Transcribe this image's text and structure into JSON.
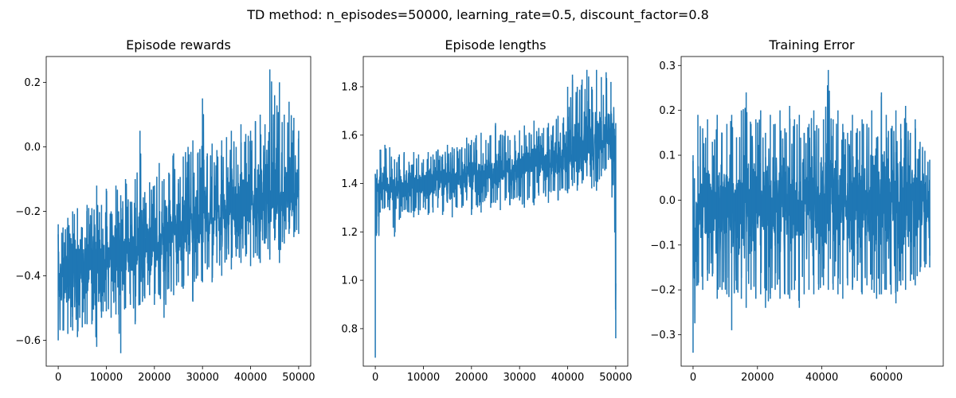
{
  "figure": {
    "suptitle": "TD method: n_episodes=50000, learning_rate=0.5, discount_factor=0.8"
  },
  "chart_data": [
    {
      "type": "line",
      "title": "Episode rewards",
      "xlabel": "",
      "ylabel": "",
      "xlim": [
        -2500,
        52500
      ],
      "ylim": [
        -0.68,
        0.28
      ],
      "xticks": [
        0,
        10000,
        20000,
        30000,
        40000,
        50000
      ],
      "xtick_labels": [
        "0",
        "10000",
        "20000",
        "30000",
        "40000",
        "50000"
      ],
      "yticks": [
        -0.6,
        -0.4,
        -0.2,
        0.0,
        0.2
      ],
      "ytick_labels": [
        "−0.6",
        "−0.4",
        "−0.2",
        "0.0",
        "0.2"
      ],
      "grid": false,
      "color": "#1f77b4",
      "series": [
        {
          "x": [
            0,
            1000,
            2000,
            3000,
            4000,
            5000,
            6000,
            7000,
            8000,
            9000,
            10000,
            11000,
            12000,
            13000,
            14000,
            15000,
            16000,
            17000,
            18000,
            19000,
            20000,
            21000,
            22000,
            23000,
            24000,
            25000,
            26000,
            27000,
            28000,
            29000,
            30000,
            31000,
            32000,
            33000,
            34000,
            35000,
            36000,
            37000,
            38000,
            39000,
            40000,
            41000,
            42000,
            43000,
            44000,
            45000,
            46000,
            47000,
            48000,
            49000,
            50000
          ],
          "values": [
            -0.42,
            -0.4,
            -0.38,
            -0.39,
            -0.37,
            -0.37,
            -0.36,
            -0.36,
            -0.34,
            -0.36,
            -0.35,
            -0.33,
            -0.33,
            -0.32,
            -0.33,
            -0.31,
            -0.32,
            -0.3,
            -0.31,
            -0.29,
            -0.3,
            -0.29,
            -0.28,
            -0.28,
            -0.26,
            -0.27,
            -0.25,
            -0.26,
            -0.24,
            -0.24,
            -0.23,
            -0.23,
            -0.22,
            -0.22,
            -0.21,
            -0.2,
            -0.2,
            -0.19,
            -0.2,
            -0.18,
            -0.18,
            -0.17,
            -0.17,
            -0.16,
            -0.15,
            -0.16,
            -0.14,
            -0.15,
            -0.13,
            -0.14,
            -0.15
          ],
          "band_low": [
            -0.6,
            -0.57,
            -0.58,
            -0.57,
            -0.59,
            -0.56,
            -0.55,
            -0.55,
            -0.62,
            -0.53,
            -0.51,
            -0.53,
            -0.52,
            -0.64,
            -0.5,
            -0.49,
            -0.55,
            -0.49,
            -0.47,
            -0.46,
            -0.49,
            -0.46,
            -0.53,
            -0.44,
            -0.46,
            -0.42,
            -0.44,
            -0.4,
            -0.48,
            -0.4,
            -0.42,
            -0.38,
            -0.42,
            -0.36,
            -0.4,
            -0.35,
            -0.38,
            -0.34,
            -0.36,
            -0.34,
            -0.37,
            -0.33,
            -0.36,
            -0.3,
            -0.35,
            -0.29,
            -0.36,
            -0.3,
            -0.27,
            -0.28,
            -0.27
          ],
          "band_high": [
            -0.24,
            -0.25,
            -0.22,
            -0.2,
            -0.19,
            -0.25,
            -0.18,
            -0.19,
            -0.12,
            -0.18,
            -0.13,
            -0.2,
            -0.12,
            -0.15,
            -0.1,
            -0.17,
            -0.1,
            0.05,
            -0.14,
            -0.11,
            -0.12,
            -0.05,
            -0.1,
            -0.08,
            -0.02,
            -0.1,
            -0.03,
            0.0,
            0.02,
            -0.02,
            0.15,
            -0.02,
            0.01,
            -0.01,
            0.02,
            0.03,
            0.05,
            0.0,
            0.07,
            0.04,
            0.05,
            0.08,
            0.1,
            0.07,
            0.24,
            0.16,
            0.2,
            0.1,
            0.14,
            0.09,
            0.05
          ]
        }
      ]
    },
    {
      "type": "line",
      "title": "Episode lengths",
      "xlabel": "",
      "ylabel": "",
      "xlim": [
        -2500,
        52500
      ],
      "ylim": [
        0.645,
        1.925
      ],
      "xticks": [
        0,
        10000,
        20000,
        30000,
        40000,
        50000
      ],
      "xtick_labels": [
        "0",
        "10000",
        "20000",
        "30000",
        "40000",
        "50000"
      ],
      "yticks": [
        0.8,
        1.0,
        1.2,
        1.4,
        1.6,
        1.8
      ],
      "ytick_labels": [
        "0.8",
        "1.0",
        "1.2",
        "1.4",
        "1.6",
        "1.8"
      ],
      "grid": false,
      "color": "#1f77b4",
      "series": [
        {
          "x": [
            0,
            1000,
            2000,
            3000,
            4000,
            5000,
            6000,
            7000,
            8000,
            9000,
            10000,
            11000,
            12000,
            13000,
            14000,
            15000,
            16000,
            17000,
            18000,
            19000,
            20000,
            21000,
            22000,
            23000,
            24000,
            25000,
            26000,
            27000,
            28000,
            29000,
            30000,
            31000,
            32000,
            33000,
            34000,
            35000,
            36000,
            37000,
            38000,
            39000,
            40000,
            41000,
            42000,
            43000,
            44000,
            45000,
            46000,
            47000,
            48000,
            49000,
            50000
          ],
          "values": [
            1.37,
            1.38,
            1.39,
            1.37,
            1.38,
            1.39,
            1.39,
            1.4,
            1.4,
            1.4,
            1.4,
            1.41,
            1.4,
            1.41,
            1.41,
            1.42,
            1.41,
            1.42,
            1.42,
            1.43,
            1.43,
            1.43,
            1.44,
            1.44,
            1.44,
            1.45,
            1.45,
            1.46,
            1.46,
            1.46,
            1.46,
            1.47,
            1.47,
            1.48,
            1.48,
            1.48,
            1.49,
            1.5,
            1.5,
            1.5,
            1.51,
            1.52,
            1.53,
            1.54,
            1.55,
            1.56,
            1.57,
            1.58,
            1.59,
            1.6,
            1.6
          ],
          "band_low": [
            0.68,
            1.28,
            1.3,
            1.29,
            1.18,
            1.25,
            1.29,
            1.28,
            1.26,
            1.27,
            1.3,
            1.27,
            1.28,
            1.3,
            1.27,
            1.32,
            1.26,
            1.3,
            1.3,
            1.33,
            1.27,
            1.31,
            1.28,
            1.34,
            1.3,
            1.32,
            1.29,
            1.33,
            1.31,
            1.34,
            1.33,
            1.3,
            1.34,
            1.31,
            1.35,
            1.36,
            1.32,
            1.37,
            1.33,
            1.38,
            1.36,
            1.39,
            1.37,
            1.4,
            1.43,
            1.38,
            1.37,
            1.43,
            1.46,
            1.5,
            0.76
          ],
          "band_high": [
            1.44,
            1.54,
            1.56,
            1.55,
            1.5,
            1.52,
            1.53,
            1.49,
            1.53,
            1.52,
            1.5,
            1.53,
            1.52,
            1.54,
            1.52,
            1.56,
            1.55,
            1.55,
            1.55,
            1.59,
            1.58,
            1.6,
            1.61,
            1.58,
            1.6,
            1.65,
            1.6,
            1.62,
            1.58,
            1.6,
            1.62,
            1.64,
            1.61,
            1.66,
            1.63,
            1.63,
            1.65,
            1.64,
            1.68,
            1.65,
            1.8,
            1.85,
            1.8,
            1.83,
            1.87,
            1.8,
            1.87,
            1.84,
            1.86,
            1.82,
            1.65
          ]
        }
      ]
    },
    {
      "type": "line",
      "title": "Training Error",
      "xlabel": "",
      "ylabel": "",
      "xlim": [
        -3700,
        77700
      ],
      "ylim": [
        -0.37,
        0.32
      ],
      "xticks": [
        0,
        20000,
        40000,
        60000
      ],
      "xtick_labels": [
        "0",
        "20000",
        "40000",
        "60000"
      ],
      "yticks": [
        -0.3,
        -0.2,
        -0.1,
        0.0,
        0.1,
        0.2,
        0.3
      ],
      "ytick_labels": [
        "−0.3",
        "−0.2",
        "−0.1",
        "0.0",
        "0.1",
        "0.2",
        "0.3"
      ],
      "grid": false,
      "color": "#1f77b4",
      "series": [
        {
          "x": [
            0,
            1500,
            3000,
            4500,
            6000,
            7500,
            9000,
            10500,
            12000,
            13500,
            15000,
            16500,
            18000,
            19500,
            21000,
            22500,
            24000,
            25500,
            27000,
            28500,
            30000,
            31500,
            33000,
            34500,
            36000,
            37500,
            39000,
            40500,
            42000,
            43500,
            45000,
            46500,
            48000,
            49500,
            51000,
            52500,
            54000,
            55500,
            57000,
            58500,
            60000,
            61500,
            63000,
            64500,
            66000,
            67500,
            69000,
            70500,
            72000,
            73500
          ],
          "values": [
            -0.12,
            -0.03,
            -0.02,
            -0.01,
            0.0,
            -0.02,
            -0.01,
            0.0,
            -0.01,
            0.0,
            -0.01,
            0.0,
            -0.01,
            0.0,
            0.0,
            -0.01,
            -0.01,
            0.0,
            -0.01,
            0.0,
            -0.01,
            0.0,
            -0.01,
            0.0,
            0.0,
            -0.01,
            0.0,
            0.0,
            0.01,
            0.0,
            -0.01,
            0.0,
            0.0,
            -0.01,
            0.0,
            -0.01,
            0.0,
            0.0,
            -0.01,
            0.0,
            -0.01,
            0.0,
            0.0,
            -0.01,
            0.0,
            -0.01,
            0.0,
            0.0,
            -0.01,
            -0.02
          ],
          "band_low": [
            -0.34,
            -0.19,
            -0.2,
            -0.18,
            -0.17,
            -0.22,
            -0.2,
            -0.21,
            -0.29,
            -0.2,
            -0.22,
            -0.24,
            -0.2,
            -0.22,
            -0.21,
            -0.24,
            -0.22,
            -0.2,
            -0.22,
            -0.21,
            -0.22,
            -0.2,
            -0.24,
            -0.21,
            -0.2,
            -0.21,
            -0.2,
            -0.19,
            -0.2,
            -0.2,
            -0.21,
            -0.22,
            -0.19,
            -0.2,
            -0.18,
            -0.21,
            -0.19,
            -0.2,
            -0.22,
            -0.21,
            -0.2,
            -0.21,
            -0.23,
            -0.19,
            -0.2,
            -0.18,
            -0.19,
            -0.16,
            -0.15,
            -0.15
          ],
          "band_high": [
            0.1,
            0.19,
            0.16,
            0.18,
            0.13,
            0.19,
            0.15,
            0.17,
            0.19,
            0.14,
            0.2,
            0.24,
            0.17,
            0.18,
            0.2,
            0.15,
            0.19,
            0.17,
            0.2,
            0.16,
            0.21,
            0.18,
            0.19,
            0.15,
            0.17,
            0.2,
            0.16,
            0.18,
            0.29,
            0.18,
            0.2,
            0.17,
            0.15,
            0.19,
            0.16,
            0.18,
            0.17,
            0.2,
            0.14,
            0.24,
            0.19,
            0.16,
            0.2,
            0.17,
            0.21,
            0.15,
            0.18,
            0.13,
            0.11,
            0.09
          ]
        }
      ]
    }
  ]
}
